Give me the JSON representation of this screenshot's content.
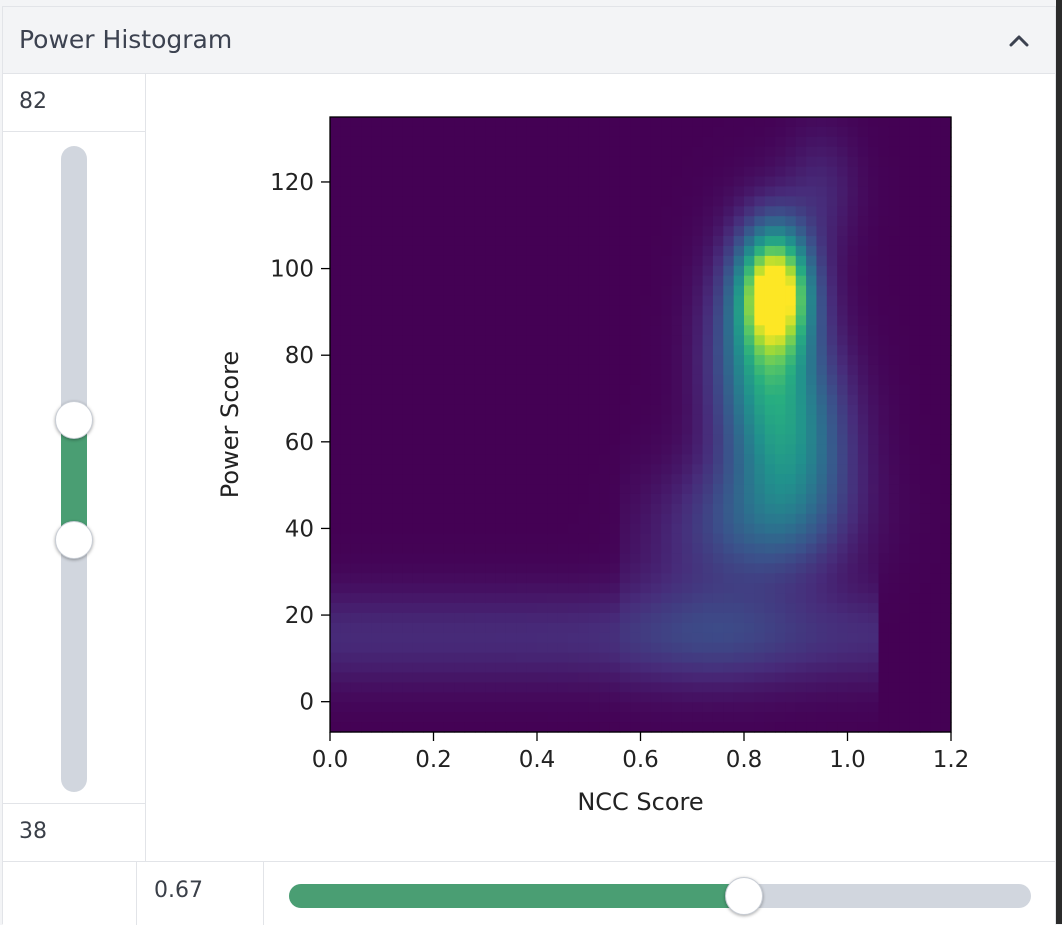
{
  "panel": {
    "title": "Power Histogram",
    "collapse_icon": "chevron-up-icon"
  },
  "power_range": {
    "max_label": "82",
    "min_label": "38",
    "upper_value": 82,
    "lower_value": 38,
    "slider_fill_color": "#4a9e73"
  },
  "ncc_threshold": {
    "value_label": "0.67",
    "fill_fraction": 0.615
  },
  "chart_data": {
    "type": "heatmap",
    "title": "",
    "xlabel": "NCC Score",
    "ylabel": "Power Score",
    "xlim": [
      0.0,
      1.2
    ],
    "ylim": [
      -7,
      135
    ],
    "x_ticks": [
      "0.0",
      "0.2",
      "0.4",
      "0.6",
      "0.8",
      "1.0",
      "1.2"
    ],
    "y_ticks": [
      "0",
      "20",
      "40",
      "60",
      "80",
      "100",
      "120"
    ],
    "x_tick_values": [
      0.0,
      0.2,
      0.4,
      0.6,
      0.8,
      1.0,
      1.2
    ],
    "y_tick_values": [
      0,
      20,
      40,
      60,
      80,
      100,
      120
    ],
    "colormap": "viridis",
    "density_peak": {
      "x": 0.86,
      "y": 95
    },
    "grid": false
  }
}
